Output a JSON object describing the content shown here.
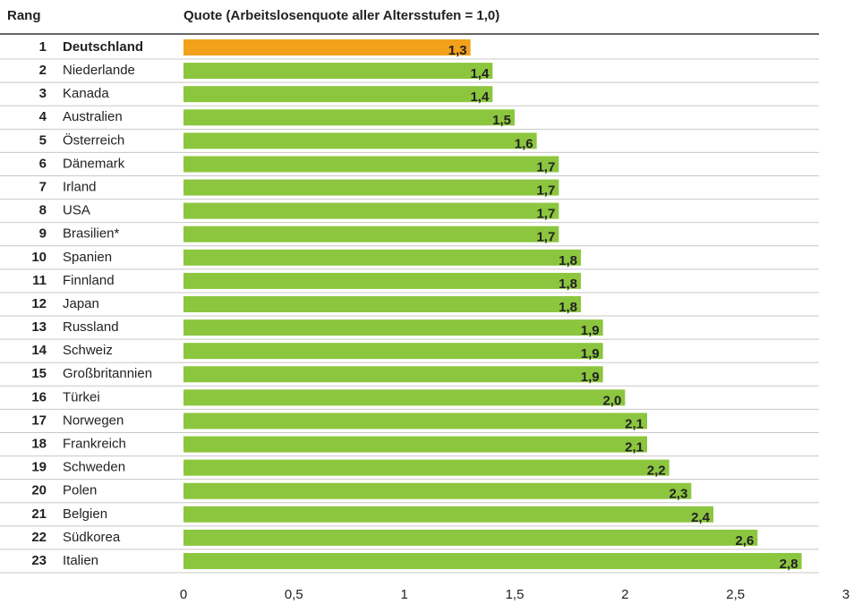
{
  "chart_data": {
    "type": "bar",
    "orientation": "horizontal",
    "rank_header": "Rang",
    "title": "Quote (Arbeitslosenquote aller Altersstufen = 1,0)",
    "ranks": [
      "1",
      "2",
      "3",
      "4",
      "5",
      "6",
      "7",
      "8",
      "9",
      "10",
      "11",
      "12",
      "13",
      "14",
      "15",
      "16",
      "17",
      "18",
      "19",
      "20",
      "21",
      "22",
      "23"
    ],
    "categories": [
      "Deutschland",
      "Niederlande",
      "Kanada",
      "Australien",
      "Österreich",
      "Dänemark",
      "Irland",
      "USA",
      "Brasilien*",
      "Spanien",
      "Finnland",
      "Japan",
      "Russland",
      "Schweiz",
      "Großbritannien",
      "Türkei",
      "Norwegen",
      "Frankreich",
      "Schweden",
      "Polen",
      "Belgien",
      "Südkorea",
      "Italien"
    ],
    "values": [
      1.3,
      1.4,
      1.4,
      1.5,
      1.6,
      1.7,
      1.7,
      1.7,
      1.7,
      1.8,
      1.8,
      1.8,
      1.9,
      1.9,
      1.9,
      2.0,
      2.1,
      2.1,
      2.2,
      2.3,
      2.4,
      2.6,
      2.8
    ],
    "value_labels": [
      "1,3",
      "1,4",
      "1,4",
      "1,5",
      "1,6",
      "1,7",
      "1,7",
      "1,7",
      "1,7",
      "1,8",
      "1,8",
      "1,8",
      "1,9",
      "1,9",
      "1,9",
      "2,0",
      "2,1",
      "2,1",
      "2,2",
      "2,3",
      "2,4",
      "2,6",
      "2,8"
    ],
    "colors": [
      "#f3a11b",
      "#8cc63f",
      "#8cc63f",
      "#8cc63f",
      "#8cc63f",
      "#8cc63f",
      "#8cc63f",
      "#8cc63f",
      "#8cc63f",
      "#8cc63f",
      "#8cc63f",
      "#8cc63f",
      "#8cc63f",
      "#8cc63f",
      "#8cc63f",
      "#8cc63f",
      "#8cc63f",
      "#8cc63f",
      "#8cc63f",
      "#8cc63f",
      "#8cc63f",
      "#8cc63f",
      "#8cc63f"
    ],
    "xlim": [
      0,
      3
    ],
    "xticks": [
      0,
      {
        "value": 0.5,
        "label": "0,5"
      },
      1,
      {
        "value": 1.5,
        "label": "1,5"
      },
      2,
      {
        "value": 2.5,
        "label": "2,5"
      },
      3
    ]
  }
}
